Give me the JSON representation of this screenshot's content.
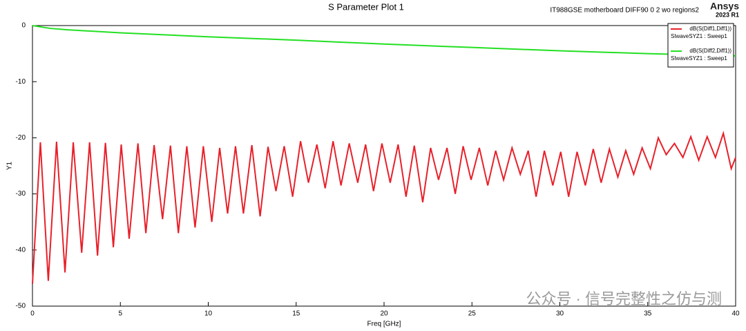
{
  "chart_data": {
    "type": "line",
    "title": "S Parameter Plot 1",
    "header_note": "IT988GSE  motherboard  DIFF90  0  2  wo  regions2",
    "brand": "Ansys",
    "version": "2023 R1",
    "watermark": "公众号 · 信号完整性之仿与测",
    "x_label": "Freq [GHz]",
    "y_label": "Y1",
    "xlim": [
      0,
      40
    ],
    "xticks": [
      0,
      5,
      10,
      15,
      20,
      25,
      30,
      35,
      40
    ],
    "ylim": [
      -50,
      0
    ],
    "yticks": [
      0,
      -10,
      -20,
      -30,
      -40,
      -50
    ],
    "grid": false,
    "legend": "upper right",
    "series": [
      {
        "name": "dB(S(Diff1,Diff1))",
        "sweep": "SIwaveSYZ1 : Sweep1",
        "color": "#e8202a",
        "x": [
          0,
          0.45,
          0.9,
          1.37,
          1.85,
          2.32,
          2.8,
          3.25,
          3.7,
          4.15,
          4.6,
          5.05,
          5.5,
          6.0,
          6.45,
          6.92,
          7.4,
          7.85,
          8.3,
          8.78,
          9.25,
          9.72,
          10.2,
          10.65,
          11.1,
          11.55,
          12.0,
          12.48,
          12.95,
          13.4,
          13.85,
          14.32,
          14.8,
          15.25,
          15.7,
          16.18,
          16.65,
          17.1,
          17.55,
          18.02,
          18.5,
          18.95,
          19.4,
          19.88,
          20.35,
          20.8,
          21.25,
          21.72,
          22.2,
          22.65,
          23.1,
          23.58,
          24.05,
          24.5,
          24.95,
          25.42,
          25.9,
          26.35,
          26.8,
          27.28,
          27.75,
          28.2,
          28.65,
          29.12,
          29.6,
          30.05,
          30.5,
          30.98,
          31.45,
          31.9,
          32.35,
          32.82,
          33.3,
          33.75,
          34.2,
          34.68,
          35.15,
          35.6,
          36.05,
          36.52,
          37.0,
          37.45,
          37.9,
          38.38,
          38.85,
          39.3,
          39.75,
          40
        ],
        "values": [
          -46,
          -20.8,
          -45.5,
          -20.7,
          -44,
          -20.8,
          -40.5,
          -20.8,
          -41,
          -20.9,
          -39.5,
          -21.2,
          -38,
          -21,
          -37,
          -21.3,
          -34.5,
          -21.4,
          -37,
          -21.5,
          -36,
          -21.5,
          -35,
          -21.8,
          -33.5,
          -21.5,
          -33.5,
          -21.3,
          -34,
          -21.6,
          -29.5,
          -21.5,
          -30.5,
          -20.6,
          -28,
          -21.2,
          -29,
          -20.6,
          -28.5,
          -21,
          -28,
          -21.2,
          -29.5,
          -21,
          -28,
          -21.2,
          -30.5,
          -21.4,
          -31.5,
          -21.8,
          -27.5,
          -21.8,
          -30,
          -21.5,
          -27.5,
          -21.8,
          -28.5,
          -22.3,
          -27.5,
          -21.8,
          -26.5,
          -22.3,
          -30.5,
          -22.3,
          -28.5,
          -22.5,
          -30.5,
          -22.5,
          -28.5,
          -22,
          -28,
          -22,
          -27,
          -22.3,
          -26.5,
          -21.8,
          -25.5,
          -20,
          -23,
          -21,
          -23.5,
          -19.8,
          -24,
          -19.8,
          -23.5,
          -19.2,
          -25.5,
          -23.5
        ]
      },
      {
        "name": "dB(S(Diff2,Diff1))",
        "sweep": "SIwaveSYZ1 : Sweep1",
        "color": "#22e022",
        "x": [
          0,
          1,
          2,
          5,
          10,
          15,
          20,
          25,
          30,
          35,
          40
        ],
        "values": [
          0,
          -0.5,
          -0.75,
          -1.3,
          -2.0,
          -2.6,
          -3.3,
          -3.9,
          -4.5,
          -5.0,
          -5.4
        ]
      }
    ]
  }
}
